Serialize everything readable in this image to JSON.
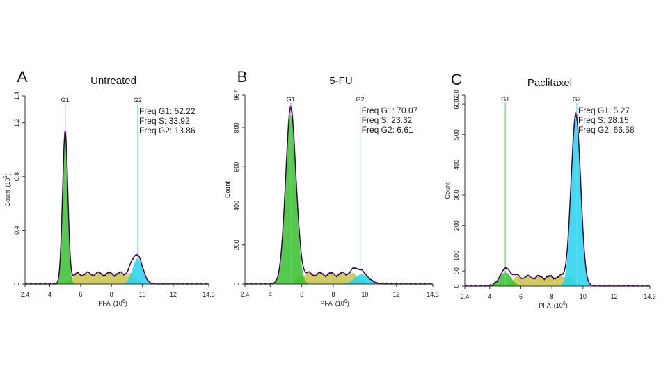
{
  "chart_data": [
    {
      "type": "area",
      "panel_letter": "A",
      "title": "Untreated",
      "xlabel": "PI-A",
      "xlabel_unit": "(10",
      "xlabel_exp": "6",
      "xlabel_close": ")",
      "ylabel": "Count",
      "ylabel_unit": "(10",
      "ylabel_exp": "3",
      "ylabel_close": ")",
      "xlim": [
        2.4,
        14.3
      ],
      "ylim": [
        0,
        1.4
      ],
      "x_ticks": [
        "2.4",
        "4",
        "6",
        "8",
        "10",
        "12",
        "14.3"
      ],
      "y_ticks": [
        {
          "value": 0,
          "label": "0"
        },
        {
          "value": 0.4,
          "label": "0.4"
        },
        {
          "value": 0.8,
          "label": "0.8"
        },
        {
          "value": 1.2,
          "label": "1.2"
        },
        {
          "value": 1.4,
          "label": "1.4"
        }
      ],
      "gates": [
        {
          "label": "G1",
          "x": 5.0
        },
        {
          "label": "G2",
          "x": 9.7
        }
      ],
      "stats": [
        "Freq G1: 52.22",
        "Freq S: 33.92",
        "Freq G2: 13.86"
      ],
      "g1_peak": {
        "x": 5.0,
        "height": 1.12,
        "sigma": 0.17
      },
      "g2_peak": {
        "x": 9.7,
        "height": 0.19,
        "sigma": 0.33
      },
      "s_phase_level": 0.09,
      "fit_peak_bump": 0.02
    },
    {
      "type": "area",
      "panel_letter": "B",
      "title": "5-FU",
      "xlabel": "PI-A",
      "xlabel_unit": "(10",
      "xlabel_exp": "6",
      "xlabel_close": ")",
      "ylabel": "Count",
      "xlim": [
        2.4,
        14.3
      ],
      "ylim": [
        0,
        967
      ],
      "x_ticks": [
        "2.4",
        "4",
        "6",
        "8",
        "10",
        "12",
        "14.3"
      ],
      "y_ticks": [
        {
          "value": 0,
          "label": "0"
        },
        {
          "value": 200,
          "label": "200"
        },
        {
          "value": 400,
          "label": "400"
        },
        {
          "value": 600,
          "label": "600"
        },
        {
          "value": 800,
          "label": "800"
        },
        {
          "value": 967,
          "label": "967"
        }
      ],
      "gates": [
        {
          "label": "G1",
          "x": 5.3
        },
        {
          "label": "G2",
          "x": 9.7
        }
      ],
      "stats": [
        "Freq G1: 70.07",
        "Freq S: 23.32",
        "Freq G2: 6.61"
      ],
      "g1_peak": {
        "x": 5.3,
        "height": 870,
        "sigma": 0.33
      },
      "g2_peak": {
        "x": 9.8,
        "height": 50,
        "sigma": 0.45
      },
      "s_phase_level": 60,
      "fit_peak_bump": 40
    },
    {
      "type": "area",
      "panel_letter": "C",
      "title": "Paclitaxel",
      "xlabel": "PI-A",
      "xlabel_unit": "(10",
      "xlabel_exp": "6",
      "xlabel_close": ")",
      "ylabel": "Count",
      "xlim": [
        2.4,
        14.3
      ],
      "ylim": [
        0,
        630
      ],
      "x_ticks": [
        "2.4",
        "4",
        "6",
        "8",
        "10",
        "12",
        "14.3"
      ],
      "y_ticks": [
        {
          "value": 0,
          "label": "0"
        },
        {
          "value": 50,
          "label": "50"
        },
        {
          "value": 100,
          "label": "100"
        },
        {
          "value": 200,
          "label": "200"
        },
        {
          "value": 300,
          "label": "300"
        },
        {
          "value": 400,
          "label": "400"
        },
        {
          "value": 500,
          "label": "500"
        },
        {
          "value": 600,
          "label": "600"
        },
        {
          "value": 630,
          "label": "630"
        }
      ],
      "gates": [
        {
          "label": "G1",
          "x": 5.0
        },
        {
          "label": "G2",
          "x": 9.6
        }
      ],
      "stats": [
        "Freq G1: 5.27",
        "Freq S: 28.15",
        "Freq G2: 66.58"
      ],
      "g1_peak": {
        "x": 5.0,
        "height": 45,
        "sigma": 0.38
      },
      "g2_peak": {
        "x": 9.55,
        "height": 560,
        "sigma": 0.3
      },
      "s_phase_level": 35,
      "fit_peak_bump": 12
    }
  ],
  "colors": {
    "g1_fill": "#37c02f",
    "s_fill": "#c9c24a",
    "g2_fill": "#22d4ee",
    "fit_line": "#a020c0",
    "data_line": "#111111",
    "g1_gate": "#6ccf6c",
    "g2_gate": "#5fd8ec",
    "axis": "#333333"
  }
}
